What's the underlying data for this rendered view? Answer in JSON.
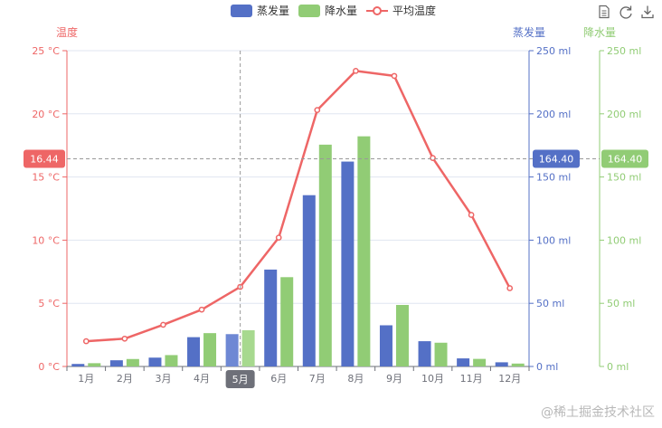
{
  "toolbox": {
    "data_view_icon": "data-view-icon",
    "restore_icon": "restore-icon",
    "save_icon": "save-image-icon"
  },
  "watermark": "@稀土掘金技术社区",
  "colors": {
    "evaporation": "#5470c6",
    "precipitation": "#91cc75",
    "temperature": "#ee6666",
    "evaporation_active": "#6e88d4",
    "precipitation_active": "#a7d98f",
    "axis_label_bg": "#6e7079",
    "tooltip_line": "#999999"
  },
  "chart_data": {
    "type": "bar",
    "categories": [
      "1月",
      "2月",
      "3月",
      "4月",
      "5月",
      "6月",
      "7月",
      "8月",
      "9月",
      "10月",
      "11月",
      "12月"
    ],
    "series": [
      {
        "name": "蒸发量",
        "type": "bar",
        "axis": "evaporation",
        "values": [
          2.0,
          4.9,
          7.0,
          23.2,
          25.6,
          76.7,
          135.6,
          162.2,
          32.6,
          20.0,
          6.4,
          3.3
        ]
      },
      {
        "name": "降水量",
        "type": "bar",
        "axis": "precipitation",
        "values": [
          2.6,
          5.9,
          9.0,
          26.4,
          28.7,
          70.7,
          175.6,
          182.2,
          48.7,
          18.8,
          6.0,
          2.3
        ]
      },
      {
        "name": "平均温度",
        "type": "line",
        "axis": "temperature",
        "values": [
          2.0,
          2.2,
          3.3,
          4.5,
          6.3,
          10.2,
          20.3,
          23.4,
          23.0,
          16.5,
          12.0,
          6.2
        ]
      }
    ],
    "axes": {
      "temperature": {
        "name": "温度",
        "min": 0,
        "max": 25,
        "ticks": [
          "0 °C",
          "5 °C",
          "10 °C",
          "15 °C",
          "20 °C",
          "25 °C"
        ],
        "position": "left"
      },
      "evaporation": {
        "name": "蒸发量",
        "min": 0,
        "max": 250,
        "ticks": [
          "0 ml",
          "50 ml",
          "100 ml",
          "150 ml",
          "200 ml",
          "250 ml"
        ],
        "position": "right"
      },
      "precipitation": {
        "name": "降水量",
        "min": 0,
        "max": 250,
        "ticks": [
          "0 ml",
          "50 ml",
          "100 ml",
          "150 ml",
          "200 ml",
          "250 ml"
        ],
        "position": "right-offset"
      }
    },
    "pointer": {
      "category": "5月",
      "category_index": 4,
      "temperature_label": "16.44",
      "evaporation_label": "164.40",
      "precipitation_label": "164.40",
      "value_fraction": 0.6576
    },
    "grid": "horizontal",
    "legend_position": "top-center"
  }
}
